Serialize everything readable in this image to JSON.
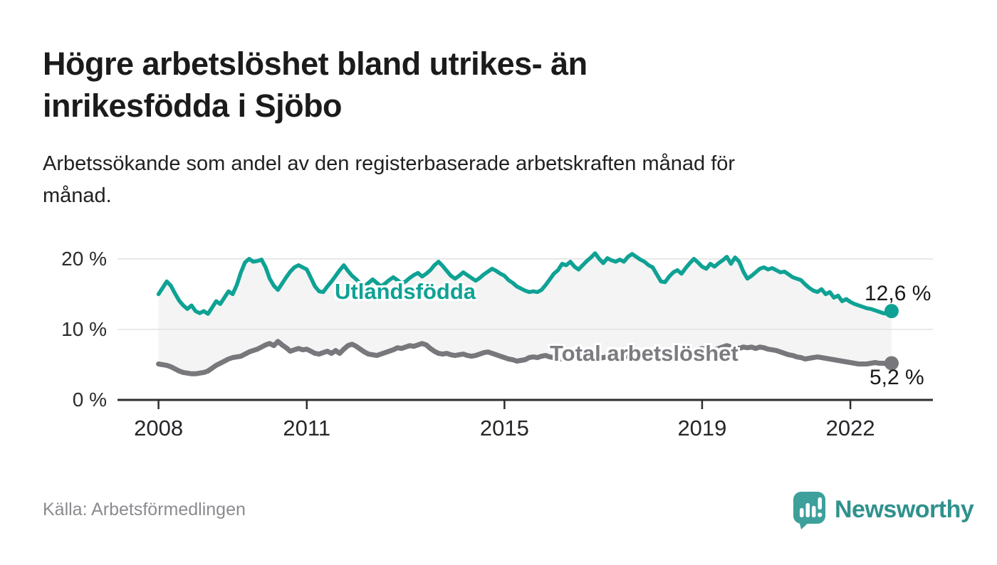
{
  "header": {
    "title_lines": [
      "Högre arbetslöshet bland utrikes- än",
      "inrikesfödda i Sjöbo"
    ],
    "subtitle_lines": [
      "Arbetssökande som andel av den registerbaserade arbetskraften månad för",
      "månad."
    ]
  },
  "footer": {
    "source": "Källa: Arbetsförmedlingen",
    "brand": "Newsworthy",
    "logo_icon": "speech-bubble-bar-chart-icon"
  },
  "colors": {
    "accent_teal": "#0FA294",
    "series_gray": "#77777C",
    "fill_between": "#F4F4F4",
    "grid": "#E3E3E3",
    "axis": "#2E2E32",
    "text_dark": "#1B1B1B",
    "text_muted": "#8B8B90",
    "logo_mark": "#3EA09B",
    "logo_text": "#2F918D"
  },
  "chart_data": {
    "type": "line",
    "title": "Högre arbetslöshet bland utrikes- än inrikesfödda i Sjöbo",
    "subtitle": "Arbetssökande som andel av den registerbaserade arbetskraften månad för månad.",
    "source": "Källa: Arbetsförmedlingen",
    "x_start": "2008-01",
    "x_interval": "monthly",
    "x_tick_years": [
      2008,
      2011,
      2015,
      2019,
      2022
    ],
    "x_tick_labels": [
      "2008",
      "2011",
      "2015",
      "2019",
      "2022"
    ],
    "y_ticks": [
      {
        "value": 0,
        "label": "0 %"
      },
      {
        "value": 10,
        "label": "10 %"
      },
      {
        "value": 20,
        "label": "20 %"
      }
    ],
    "ylim": [
      0,
      21.9
    ],
    "xlim_years": [
      2007.17,
      2023.67
    ],
    "grid": "horizontal",
    "legend": "inline-labels",
    "fill_between_series": true,
    "series": [
      {
        "name": "Utlandsfödda",
        "color": "#0FA294",
        "end_label": "12,6 %",
        "end_value": 12.6,
        "values": [
          15.0,
          15.9,
          16.8,
          16.2,
          15.1,
          14.1,
          13.4,
          12.9,
          13.4,
          12.6,
          12.3,
          12.6,
          12.2,
          13.1,
          14.0,
          13.6,
          14.5,
          15.4,
          15.0,
          16.3,
          18.1,
          19.5,
          20.0,
          19.6,
          19.7,
          19.9,
          18.8,
          17.2,
          16.2,
          15.6,
          16.5,
          17.4,
          18.2,
          18.8,
          19.1,
          18.8,
          18.5,
          17.3,
          16.1,
          15.4,
          15.3,
          16.1,
          16.8,
          17.6,
          18.4,
          19.1,
          18.3,
          17.6,
          17.1,
          16.5,
          16.1,
          16.6,
          17.1,
          16.6,
          16.1,
          16.5,
          17.0,
          17.4,
          17.0,
          16.5,
          16.8,
          17.3,
          17.7,
          18.0,
          17.5,
          17.9,
          18.4,
          19.1,
          19.6,
          19.0,
          18.3,
          17.6,
          17.2,
          17.6,
          18.1,
          17.7,
          17.3,
          16.9,
          17.3,
          17.8,
          18.2,
          18.6,
          18.3,
          17.9,
          17.6,
          17.0,
          16.6,
          16.1,
          15.8,
          15.5,
          15.3,
          15.4,
          15.3,
          15.6,
          16.3,
          17.1,
          17.9,
          18.4,
          19.3,
          19.1,
          19.6,
          18.9,
          18.5,
          19.1,
          19.7,
          20.2,
          20.8,
          20.0,
          19.4,
          20.1,
          19.8,
          19.6,
          19.9,
          19.6,
          20.3,
          20.7,
          20.3,
          19.9,
          19.6,
          19.1,
          18.8,
          17.8,
          16.8,
          16.7,
          17.5,
          18.1,
          18.4,
          17.9,
          18.7,
          19.4,
          20.0,
          19.5,
          18.9,
          18.6,
          19.3,
          18.9,
          19.4,
          19.8,
          20.3,
          19.3,
          20.2,
          19.6,
          18.2,
          17.2,
          17.6,
          18.1,
          18.6,
          18.8,
          18.5,
          18.7,
          18.4,
          18.1,
          18.2,
          17.8,
          17.4,
          17.2,
          17.0,
          16.4,
          15.9,
          15.5,
          15.3,
          15.7,
          15.0,
          15.3,
          14.5,
          14.8,
          14.0,
          14.3,
          13.9,
          13.6,
          13.4,
          13.2,
          13.0,
          12.9,
          12.7,
          12.5,
          12.3,
          12.2,
          12.6
        ]
      },
      {
        "name": "Total arbetslöshet",
        "color": "#77777C",
        "end_label": "5,2 %",
        "end_value": 5.2,
        "values": [
          5.1,
          5.0,
          4.9,
          4.7,
          4.4,
          4.1,
          3.9,
          3.8,
          3.7,
          3.7,
          3.8,
          3.9,
          4.1,
          4.5,
          4.9,
          5.2,
          5.5,
          5.8,
          6.0,
          6.1,
          6.2,
          6.5,
          6.8,
          7.0,
          7.2,
          7.5,
          7.8,
          8.0,
          7.7,
          8.3,
          7.8,
          7.4,
          6.9,
          7.1,
          7.3,
          7.1,
          7.2,
          6.9,
          6.6,
          6.5,
          6.7,
          6.9,
          6.6,
          7.0,
          6.6,
          7.2,
          7.7,
          7.9,
          7.6,
          7.2,
          6.8,
          6.5,
          6.4,
          6.3,
          6.5,
          6.7,
          6.9,
          7.1,
          7.4,
          7.3,
          7.5,
          7.7,
          7.6,
          7.8,
          8.0,
          7.8,
          7.3,
          6.9,
          6.6,
          6.5,
          6.6,
          6.4,
          6.3,
          6.4,
          6.5,
          6.3,
          6.2,
          6.3,
          6.5,
          6.7,
          6.8,
          6.6,
          6.4,
          6.2,
          6.0,
          5.8,
          5.7,
          5.5,
          5.6,
          5.7,
          6.0,
          6.1,
          6.0,
          6.2,
          6.3,
          6.1,
          6.0,
          5.9,
          5.8,
          5.7,
          5.8,
          5.9,
          6.0,
          6.1,
          6.2,
          6.1,
          6.0,
          5.9,
          6.0,
          6.1,
          6.2,
          6.3,
          6.2,
          6.1,
          6.2,
          6.3,
          6.4,
          6.5,
          6.4,
          6.3,
          6.2,
          6.1,
          6.0,
          6.1,
          6.2,
          6.3,
          6.4,
          6.5,
          6.6,
          6.8,
          7.0,
          7.1,
          7.3,
          7.1,
          7.0,
          7.1,
          7.3,
          7.5,
          7.7,
          7.5,
          7.5,
          7.3,
          7.5,
          7.4,
          7.5,
          7.3,
          7.5,
          7.4,
          7.2,
          7.1,
          7.0,
          6.8,
          6.6,
          6.4,
          6.3,
          6.1,
          6.0,
          5.8,
          5.9,
          6.0,
          6.1,
          6.0,
          5.9,
          5.8,
          5.7,
          5.6,
          5.5,
          5.4,
          5.3,
          5.2,
          5.1,
          5.1,
          5.1,
          5.2,
          5.3,
          5.2,
          5.2,
          5.1,
          5.2
        ]
      }
    ]
  }
}
